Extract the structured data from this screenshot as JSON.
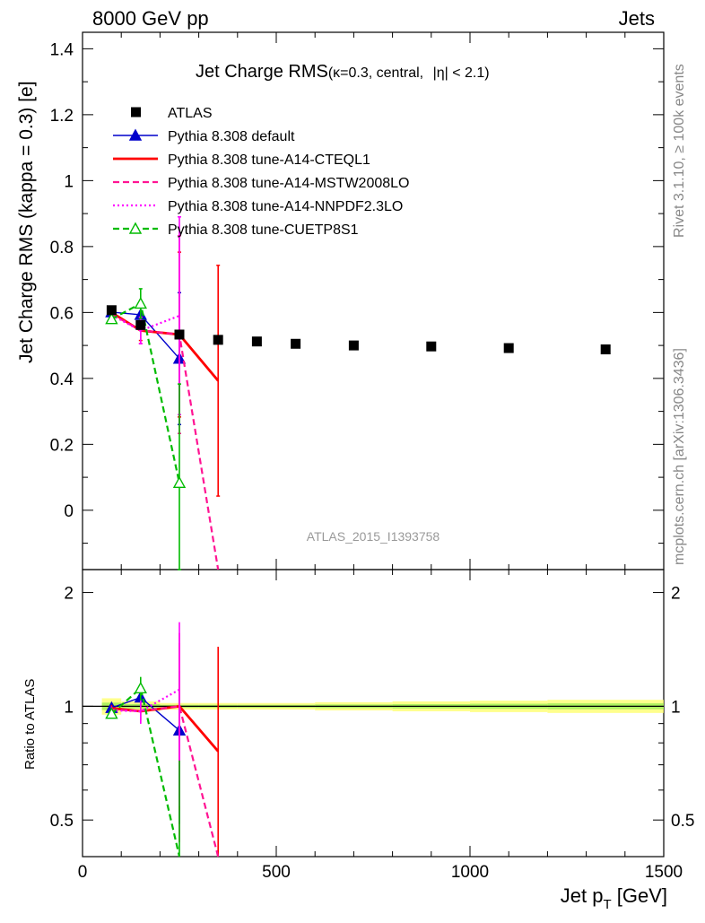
{
  "header": {
    "left": "8000 GeV pp",
    "right": "Jets"
  },
  "side_labels": {
    "top": "Rivet 3.1.10, ≥ 100k events",
    "bottom": "mcplots.cern.ch [arXiv:1306.3436]"
  },
  "title": {
    "main": "Jet Charge RMS",
    "detail_kappa": "(κ=0.3, central, ",
    "detail_eta": "η",
    "detail_tail": "| < 2.1)"
  },
  "analysis_id": "ATLAS_2015_I1393758",
  "chart_data": {
    "type": "line",
    "xlabel_main": "Jet p",
    "xlabel_sub": "T",
    "xlabel_unit": " [GeV]",
    "ylabel": "Jet Charge RMS (kappa = 0.3) [e]",
    "ratio_ylabel": "Ratio to ATLAS",
    "xlim": [
      0,
      1500
    ],
    "ylim": [
      -0.18,
      1.45
    ],
    "ratio_ylim": [
      0.4,
      2.3
    ],
    "x_tick_labels": [
      "0",
      "500",
      "1000",
      "1500"
    ],
    "y_tick_labels": [
      "0",
      "0.2",
      "0.4",
      "0.6",
      "0.8",
      "1",
      "1.2",
      "1.4"
    ],
    "ratio_tick_labels": [
      "0.5",
      "1",
      "2"
    ],
    "legend_position": "top-left",
    "data": {
      "name": "ATLAS",
      "x": [
        75,
        150,
        250,
        350,
        450,
        550,
        700,
        900,
        1100,
        1350
      ],
      "y": [
        0.607,
        0.562,
        0.533,
        0.517,
        0.512,
        0.505,
        0.5,
        0.497,
        0.492,
        0.488
      ],
      "xerr": [
        25,
        50,
        50,
        50,
        50,
        50,
        100,
        100,
        100,
        150
      ],
      "ratio_band": [
        0.05,
        0.03,
        0.02,
        0.02,
        0.02,
        0.02,
        0.025,
        0.03,
        0.035,
        0.04
      ]
    },
    "series": [
      {
        "name": "Pythia 8.308 default",
        "color": "#0000cc",
        "style": "solid",
        "marker": "triangle-filled",
        "x": [
          75,
          150,
          250
        ],
        "y": [
          0.601,
          0.593,
          0.46
        ],
        "err": [
          0.012,
          0.03,
          0.2
        ]
      },
      {
        "name": "Pythia 8.308 tune-A14-CTEQL1",
        "color": "#ff0000",
        "style": "solid-thick",
        "marker": "none",
        "x": [
          75,
          150,
          250,
          350
        ],
        "y": [
          0.6,
          0.545,
          0.533,
          0.393
        ],
        "err": [
          0.012,
          0.03,
          0.25,
          0.35
        ]
      },
      {
        "name": "Pythia 8.308 tune-A14-MSTW2008LO",
        "color": "#ff1493",
        "style": "dashed",
        "marker": "none",
        "x": [
          75,
          150,
          250,
          350
        ],
        "y": [
          0.595,
          0.546,
          0.533,
          -0.18
        ],
        "err": [
          0.012,
          0.04,
          0.3,
          0.0
        ]
      },
      {
        "name": "Pythia 8.308 tune-A14-NNPDF2.3LO",
        "color": "#ff00ff",
        "style": "dotted",
        "marker": "none",
        "x": [
          75,
          150,
          250
        ],
        "y": [
          0.592,
          0.545,
          0.59
        ],
        "err": [
          0.012,
          0.04,
          0.3
        ]
      },
      {
        "name": "Pythia 8.308 tune-CUETP8S1",
        "color": "#00bb00",
        "style": "dashed",
        "marker": "triangle-open",
        "x": [
          75,
          150,
          250
        ],
        "y": [
          0.58,
          0.627,
          0.083
        ],
        "err": [
          0.01,
          0.045,
          0.3
        ]
      }
    ]
  }
}
